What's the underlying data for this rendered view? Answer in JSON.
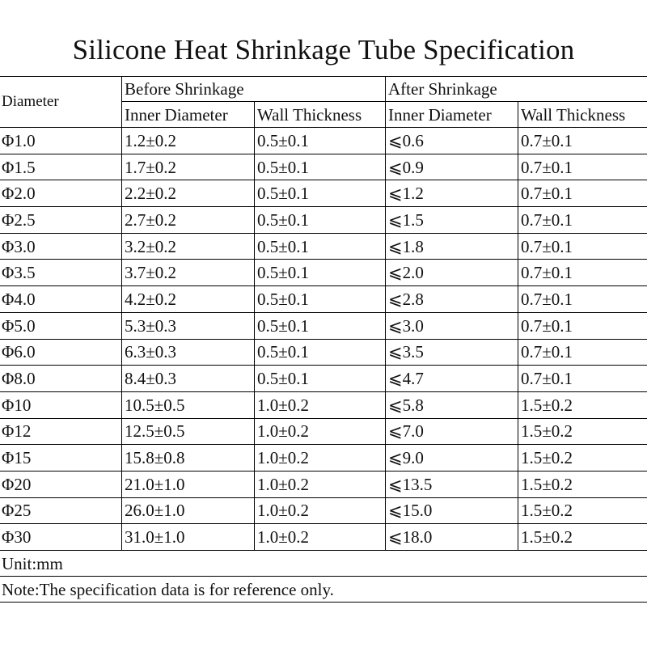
{
  "title": "Silicone Heat Shrinkage Tube Specification",
  "header": {
    "diameter": "Diameter",
    "before_group": "Before Shrinkage",
    "after_group": "After Shrinkage",
    "before_inner": "Inner Diameter",
    "before_wall": "Wall Thickness",
    "after_inner": "Inner Diameter",
    "after_wall": "Wall Thickness"
  },
  "rows": [
    {
      "diameter": "Φ1.0",
      "before_inner": "1.2±0.2",
      "before_wall": "0.5±0.1",
      "after_inner": "⩽0.6",
      "after_wall": "0.7±0.1"
    },
    {
      "diameter": "Φ1.5",
      "before_inner": "1.7±0.2",
      "before_wall": "0.5±0.1",
      "after_inner": "⩽0.9",
      "after_wall": "0.7±0.1"
    },
    {
      "diameter": "Φ2.0",
      "before_inner": "2.2±0.2",
      "before_wall": "0.5±0.1",
      "after_inner": "⩽1.2",
      "after_wall": "0.7±0.1"
    },
    {
      "diameter": "Φ2.5",
      "before_inner": "2.7±0.2",
      "before_wall": "0.5±0.1",
      "after_inner": "⩽1.5",
      "after_wall": "0.7±0.1"
    },
    {
      "diameter": "Φ3.0",
      "before_inner": "3.2±0.2",
      "before_wall": "0.5±0.1",
      "after_inner": "⩽1.8",
      "after_wall": "0.7±0.1"
    },
    {
      "diameter": "Φ3.5",
      "before_inner": "3.7±0.2",
      "before_wall": "0.5±0.1",
      "after_inner": "⩽2.0",
      "after_wall": "0.7±0.1"
    },
    {
      "diameter": "Φ4.0",
      "before_inner": "4.2±0.2",
      "before_wall": "0.5±0.1",
      "after_inner": "⩽2.8",
      "after_wall": "0.7±0.1"
    },
    {
      "diameter": "Φ5.0",
      "before_inner": "5.3±0.3",
      "before_wall": "0.5±0.1",
      "after_inner": "⩽3.0",
      "after_wall": "0.7±0.1"
    },
    {
      "diameter": "Φ6.0",
      "before_inner": "6.3±0.3",
      "before_wall": "0.5±0.1",
      "after_inner": "⩽3.5",
      "after_wall": "0.7±0.1"
    },
    {
      "diameter": "Φ8.0",
      "before_inner": "8.4±0.3",
      "before_wall": "0.5±0.1",
      "after_inner": "⩽4.7",
      "after_wall": "0.7±0.1"
    },
    {
      "diameter": "Φ10",
      "before_inner": "10.5±0.5",
      "before_wall": "1.0±0.2",
      "after_inner": "⩽5.8",
      "after_wall": "1.5±0.2"
    },
    {
      "diameter": "Φ12",
      "before_inner": "12.5±0.5",
      "before_wall": "1.0±0.2",
      "after_inner": "⩽7.0",
      "after_wall": "1.5±0.2"
    },
    {
      "diameter": "Φ15",
      "before_inner": "15.8±0.8",
      "before_wall": "1.0±0.2",
      "after_inner": "⩽9.0",
      "after_wall": "1.5±0.2"
    },
    {
      "diameter": "Φ20",
      "before_inner": "21.0±1.0",
      "before_wall": "1.0±0.2",
      "after_inner": "⩽13.5",
      "after_wall": "1.5±0.2"
    },
    {
      "diameter": "Φ25",
      "before_inner": "26.0±1.0",
      "before_wall": "1.0±0.2",
      "after_inner": "⩽15.0",
      "after_wall": "1.5±0.2"
    },
    {
      "diameter": "Φ30",
      "before_inner": "31.0±1.0",
      "before_wall": "1.0±0.2",
      "after_inner": "⩽18.0",
      "after_wall": "1.5±0.2"
    }
  ],
  "unit_note": "Unit:mm",
  "reference_note": "Note:The specification data is for reference only."
}
